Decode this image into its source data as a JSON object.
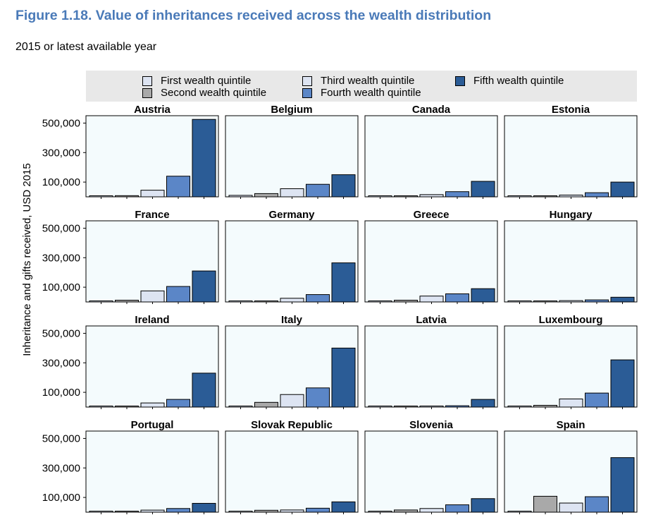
{
  "title": "Figure 1.18. Value of inheritances received across the wealth distribution",
  "subtitle": "2015 or latest available year",
  "chart_data": {
    "type": "bar",
    "layout": "small-multiples",
    "ylabel": "Inheritance and gifts received, USD 2015",
    "ylim": [
      0,
      550000
    ],
    "yticks": [
      100000,
      300000,
      500000
    ],
    "ytick_labels": [
      "100,000",
      "300,000",
      "500,000"
    ],
    "legend_position": "top",
    "series": [
      {
        "name": "First wealth quintile",
        "color": "#dde4f2"
      },
      {
        "name": "Second wealth quintile",
        "color": "#a9a9a9"
      },
      {
        "name": "Third wealth quintile",
        "color": "#dde4f2"
      },
      {
        "name": "Fourth wealth quintile",
        "color": "#5b86c7"
      },
      {
        "name": "Fifth wealth quintile",
        "color": "#2b5c96"
      }
    ],
    "panels": [
      {
        "country": "Austria",
        "values": [
          7000,
          8000,
          45000,
          140000,
          525000
        ]
      },
      {
        "country": "Belgium",
        "values": [
          10000,
          22000,
          55000,
          85000,
          150000
        ]
      },
      {
        "country": "Canada",
        "values": [
          4000,
          6000,
          15000,
          35000,
          105000
        ]
      },
      {
        "country": "Estonia",
        "values": [
          3000,
          5000,
          12000,
          28000,
          100000
        ]
      },
      {
        "country": "France",
        "values": [
          5000,
          12000,
          75000,
          105000,
          210000
        ]
      },
      {
        "country": "Germany",
        "values": [
          3000,
          6000,
          25000,
          50000,
          265000
        ]
      },
      {
        "country": "Greece",
        "values": [
          3000,
          12000,
          40000,
          55000,
          90000
        ]
      },
      {
        "country": "Hungary",
        "values": [
          2000,
          4000,
          9000,
          14000,
          32000
        ]
      },
      {
        "country": "Ireland",
        "values": [
          4000,
          6000,
          28000,
          52000,
          230000
        ]
      },
      {
        "country": "Italy",
        "values": [
          4000,
          32000,
          85000,
          130000,
          400000
        ]
      },
      {
        "country": "Latvia",
        "values": [
          2000,
          4000,
          6000,
          9000,
          52000
        ]
      },
      {
        "country": "Luxembourg",
        "values": [
          6000,
          12000,
          55000,
          95000,
          320000
        ]
      },
      {
        "country": "Portugal",
        "values": [
          3000,
          5000,
          14000,
          25000,
          60000
        ]
      },
      {
        "country": "Slovak Republic",
        "values": [
          4000,
          13000,
          15000,
          27000,
          70000
        ]
      },
      {
        "country": "Slovenia",
        "values": [
          2000,
          15000,
          25000,
          50000,
          92000
        ]
      },
      {
        "country": "Spain",
        "values": [
          5000,
          108000,
          62000,
          105000,
          370000
        ]
      }
    ]
  }
}
